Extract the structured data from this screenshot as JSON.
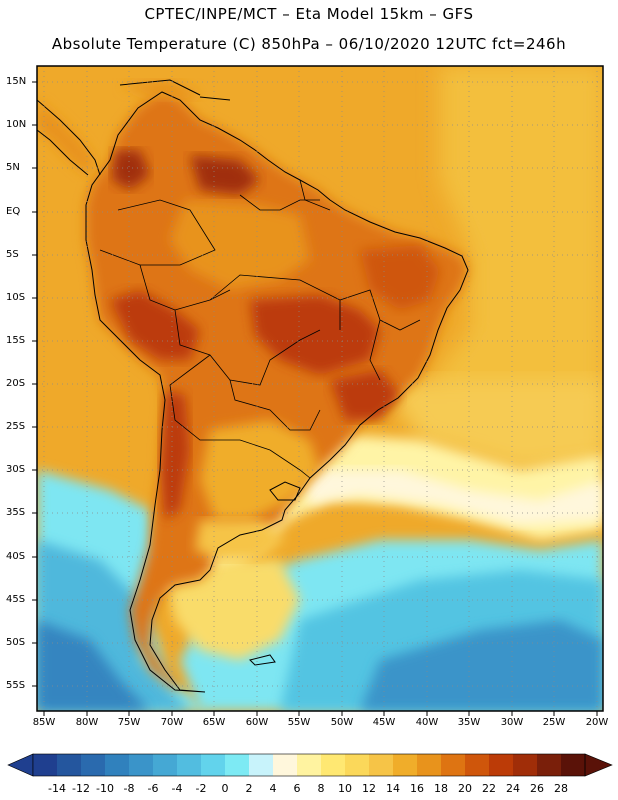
{
  "header": {
    "line1": "CPTEC/INPE/MCT –  Eta Model 15km – GFS",
    "line2": "Absolute Temperature (C) 850hPa – 06/10/2020 12UTC fct=246h"
  },
  "axes": {
    "lat_labels": [
      "15N",
      "10N",
      "5N",
      "EQ",
      "5S",
      "10S",
      "15S",
      "20S",
      "25S",
      "30S",
      "35S",
      "40S",
      "45S",
      "50S",
      "55S"
    ],
    "lon_labels": [
      "85W",
      "80W",
      "75W",
      "70W",
      "65W",
      "60W",
      "55W",
      "50W",
      "45W",
      "40W",
      "35W",
      "30W",
      "25W",
      "20W"
    ]
  },
  "colorbar": {
    "ticks": [
      "-14",
      "-12",
      "-10",
      "-8",
      "-6",
      "-4",
      "-2",
      "0",
      "2",
      "4",
      "6",
      "8",
      "10",
      "12",
      "14",
      "16",
      "18",
      "20",
      "22",
      "24",
      "26",
      "28"
    ],
    "colors": [
      "#1f3f8f",
      "#24569e",
      "#2a6aae",
      "#3081bd",
      "#3a94c9",
      "#45a8d4",
      "#52bde0",
      "#62d3ec",
      "#7deaf4",
      "#c8f3fb",
      "#fff7dc",
      "#fff3a0",
      "#ffe872",
      "#fbd85a",
      "#f6c447",
      "#f0ad2a",
      "#e8931c",
      "#de7412",
      "#cf560b",
      "#bc3b07",
      "#a02d08",
      "#7a1f0a",
      "#5a1208"
    ]
  },
  "map": {
    "ocean_color": "#f0ae2d",
    "region": "South America, 85W–20W, 17N–58S"
  }
}
